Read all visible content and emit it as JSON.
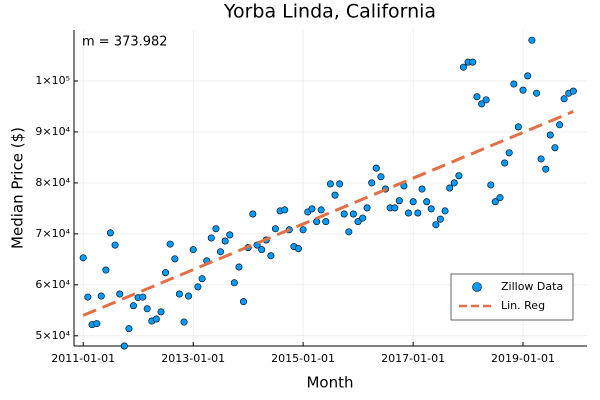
{
  "chart_data": {
    "type": "scatter",
    "title": "Yorba Linda, California",
    "x_label": "Month",
    "y_label": "Median Price ($)",
    "annotation": "m = 373.982",
    "x": [
      "2011-01-01",
      "2011-02-01",
      "2011-03-01",
      "2011-04-01",
      "2011-05-01",
      "2011-06-01",
      "2011-07-01",
      "2011-08-01",
      "2011-09-01",
      "2011-10-01",
      "2011-11-01",
      "2011-12-01",
      "2012-01-01",
      "2012-02-01",
      "2012-03-01",
      "2012-04-01",
      "2012-05-01",
      "2012-06-01",
      "2012-07-01",
      "2012-08-01",
      "2012-09-01",
      "2012-10-01",
      "2012-11-01",
      "2012-12-01",
      "2013-01-01",
      "2013-02-01",
      "2013-03-01",
      "2013-04-01",
      "2013-05-01",
      "2013-06-01",
      "2013-07-01",
      "2013-08-01",
      "2013-09-01",
      "2013-10-01",
      "2013-11-01",
      "2013-12-01",
      "2014-01-01",
      "2014-02-01",
      "2014-03-01",
      "2014-04-01",
      "2014-05-01",
      "2014-06-01",
      "2014-07-01",
      "2014-08-01",
      "2014-09-01",
      "2014-10-01",
      "2014-11-01",
      "2014-12-01",
      "2015-01-01",
      "2015-02-01",
      "2015-03-01",
      "2015-04-01",
      "2015-05-01",
      "2015-06-01",
      "2015-07-01",
      "2015-08-01",
      "2015-09-01",
      "2015-10-01",
      "2015-11-01",
      "2015-12-01",
      "2016-01-01",
      "2016-02-01",
      "2016-03-01",
      "2016-04-01",
      "2016-05-01",
      "2016-06-01",
      "2016-07-01",
      "2016-08-01",
      "2016-09-01",
      "2016-10-01",
      "2016-11-01",
      "2016-12-01",
      "2017-01-01",
      "2017-02-01",
      "2017-03-01",
      "2017-04-01",
      "2017-05-01",
      "2017-06-01",
      "2017-07-01",
      "2017-08-01",
      "2017-09-01",
      "2017-10-01",
      "2017-11-01",
      "2017-12-01",
      "2018-01-01",
      "2018-02-01",
      "2018-03-01",
      "2018-04-01",
      "2018-05-01",
      "2018-06-01",
      "2018-07-01",
      "2018-08-01",
      "2018-09-01",
      "2018-10-01",
      "2018-11-01",
      "2018-12-01",
      "2019-01-01",
      "2019-02-01",
      "2019-03-01",
      "2019-04-01",
      "2019-05-01",
      "2019-06-01",
      "2019-07-01",
      "2019-08-01",
      "2019-09-01",
      "2019-10-01",
      "2019-11-01",
      "2019-12-01"
    ],
    "series": [
      {
        "name": "Zillow Data",
        "color": "#009af9",
        "values": [
          65300,
          57600,
          52200,
          52400,
          57800,
          62900,
          70200,
          67800,
          58200,
          48000,
          51400,
          55900,
          57500,
          57600,
          55300,
          52900,
          53300,
          54700,
          62400,
          68000,
          65100,
          58200,
          52700,
          57800,
          66900,
          59600,
          61200,
          64700,
          69200,
          71000,
          66500,
          68600,
          69800,
          60400,
          63500,
          56700,
          67300,
          73900,
          67800,
          66900,
          68800,
          65700,
          71000,
          74500,
          74700,
          70800,
          67500,
          67100,
          70800,
          74300,
          74900,
          72400,
          74700,
          72400,
          79800,
          77600,
          79800,
          73900,
          70400,
          73900,
          72400,
          73100,
          75100,
          80000,
          82900,
          81200,
          78800,
          75100,
          75100,
          76500,
          79400,
          74100,
          76300,
          74100,
          78800,
          76300,
          74900,
          71800,
          72900,
          74500,
          79000,
          80000,
          81400,
          102700,
          103700,
          103700,
          96900,
          95500,
          96300,
          79600,
          76300,
          77100,
          83900,
          85900,
          99400,
          91000,
          98200,
          101000,
          108000,
          97600,
          84700,
          82700,
          89400,
          86900,
          91400,
          96500,
          97600,
          98000
        ]
      },
      {
        "name": "Lin. Reg",
        "color": "#e26f46",
        "type": "line",
        "x": [
          "2011-01-01",
          "2019-12-01"
        ],
        "values": [
          54000,
          94000
        ]
      }
    ],
    "xlim": [
      "2010-11-01",
      "2020-03-01"
    ],
    "xticks": [
      "2011-01-01",
      "2013-01-01",
      "2015-01-01",
      "2017-01-01",
      "2019-01-01"
    ],
    "ylim": [
      48000,
      110000
    ],
    "yticks": [
      {
        "value": 50000,
        "label": "5×10⁴"
      },
      {
        "value": 60000,
        "label": "6×10⁴"
      },
      {
        "value": 70000,
        "label": "7×10⁴"
      },
      {
        "value": 80000,
        "label": "8×10⁴"
      },
      {
        "value": 90000,
        "label": "9×10⁴"
      },
      {
        "value": 100000,
        "label": "1×10⁵"
      }
    ],
    "grid": true,
    "legend": "bottom-right"
  }
}
